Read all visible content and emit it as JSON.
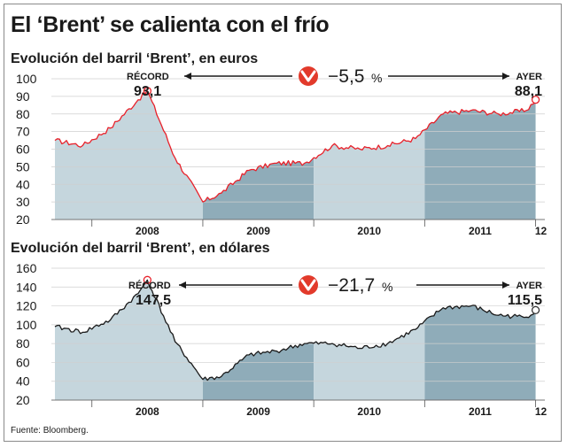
{
  "title": "El ‘Brent’ se calienta con el frío",
  "source": "Fuente: Bloomberg.",
  "colors": {
    "line": "#e8212a",
    "line2": "#1a1a1a",
    "fill_light": "#c5d6dd",
    "fill_dark": "#8facb9",
    "badge": "#e23a2b",
    "marker": "#e8212a"
  },
  "icons": [
    "arrow-down-circle-icon",
    "arrow-left-icon",
    "arrow-right-icon"
  ],
  "chart_data": [
    {
      "type": "line",
      "title": "Evolución del barril ‘Brent’, en euros",
      "x": [
        "2007-09",
        "2007-12",
        "2008-03",
        "2008-06",
        "2008-07",
        "2008-10",
        "2009-01",
        "2009-03",
        "2009-06",
        "2009-09",
        "2009-12",
        "2010-03",
        "2010-06",
        "2010-09",
        "2010-12",
        "2011-03",
        "2011-06",
        "2011-09",
        "2011-12",
        "2012-01"
      ],
      "values": [
        65,
        62,
        72,
        88,
        93.1,
        55,
        30,
        35,
        48,
        52,
        52,
        62,
        60,
        62,
        66,
        80,
        82,
        80,
        82,
        88.1
      ],
      "yticks": [
        20,
        30,
        40,
        50,
        60,
        70,
        80,
        90,
        100
      ],
      "ylim": [
        20,
        100
      ],
      "xtick_labels": [
        "2008",
        "2009",
        "2010",
        "2011",
        "12"
      ],
      "annotations": {
        "record_label": "RÉCORD",
        "record_value": "93,1",
        "current_label": "AYER",
        "current_value": "88,1",
        "change": "−5,5",
        "change_unit": "%"
      }
    },
    {
      "type": "line",
      "title": "Evolución del barril ‘Brent’, en dólares",
      "x": [
        "2007-09",
        "2007-12",
        "2008-03",
        "2008-06",
        "2008-07",
        "2008-10",
        "2009-01",
        "2009-03",
        "2009-06",
        "2009-09",
        "2009-12",
        "2010-03",
        "2010-06",
        "2010-09",
        "2010-12",
        "2011-03",
        "2011-06",
        "2011-09",
        "2011-12",
        "2012-01"
      ],
      "values": [
        98,
        92,
        105,
        133,
        147.5,
        82,
        42,
        45,
        68,
        72,
        80,
        80,
        75,
        80,
        95,
        118,
        120,
        110,
        108,
        115.5
      ],
      "yticks": [
        20,
        40,
        60,
        80,
        100,
        120,
        140,
        160
      ],
      "ylim": [
        20,
        160
      ],
      "xtick_labels": [
        "2008",
        "2009",
        "2010",
        "2011",
        "12"
      ],
      "annotations": {
        "record_label": "RÉCORD",
        "record_value": "147,5",
        "current_label": "AYER",
        "current_value": "115,5",
        "change": "−21,7",
        "change_unit": "%"
      }
    }
  ]
}
